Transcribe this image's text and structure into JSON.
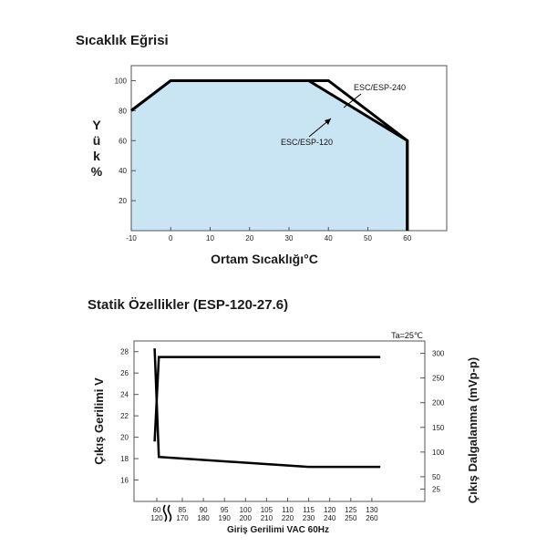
{
  "chart_data": [
    {
      "type": "area",
      "title": "Sıcaklık Eğrisi",
      "xlabel": "Ortam Sıcaklığı°C",
      "ylabel": "Yük%",
      "xlim": [
        -10,
        70
      ],
      "ylim": [
        0,
        110
      ],
      "x_ticks": [
        -10,
        0,
        10,
        20,
        30,
        40,
        50,
        60
      ],
      "y_ticks": [
        20,
        40,
        60,
        80,
        100
      ],
      "fill_color": "#c9e4f2",
      "series": [
        {
          "name": "ESC/ESP-240",
          "x": [
            -10,
            0,
            40,
            60,
            60
          ],
          "y": [
            80,
            100,
            100,
            60,
            0
          ]
        },
        {
          "name": "ESC/ESP-120",
          "x": [
            -10,
            0,
            35,
            60,
            60
          ],
          "y": [
            80,
            100,
            100,
            60,
            0
          ]
        }
      ]
    },
    {
      "type": "line",
      "title": "Statik Özellikler (ESP-120-27.6)",
      "annotation": "Ta=25℃",
      "xlabel": "Giriş Gerilimi VAC 60Hz",
      "ylabel_left": "Çıkış Gerilimi V",
      "ylabel_right": "Çıkış Dalgalanma (mVp-p)",
      "x_tick_labels_top": [
        "60",
        "85",
        "90",
        "95",
        "100",
        "105",
        "110",
        "115",
        "120",
        "125",
        "130"
      ],
      "x_tick_labels_bottom": [
        "120",
        "170",
        "180",
        "190",
        "200",
        "210",
        "220",
        "230",
        "240",
        "250",
        "260"
      ],
      "y_left_ticks": [
        16,
        18,
        20,
        22,
        24,
        26,
        28
      ],
      "y_right_ticks": [
        25,
        50,
        100,
        150,
        200,
        250,
        300
      ],
      "left_ylim": [
        14,
        29
      ],
      "right_ylim": [
        0,
        325
      ],
      "series": [
        {
          "name": "",
          "axis": "left",
          "x": [
            58,
            62,
            132
          ],
          "y": [
            19.6,
            27.5,
            27.5
          ]
        },
        {
          "name": "",
          "axis": "right",
          "x": [
            58,
            62,
            115,
            132
          ],
          "y": [
            310,
            90,
            70,
            70
          ]
        }
      ]
    }
  ]
}
